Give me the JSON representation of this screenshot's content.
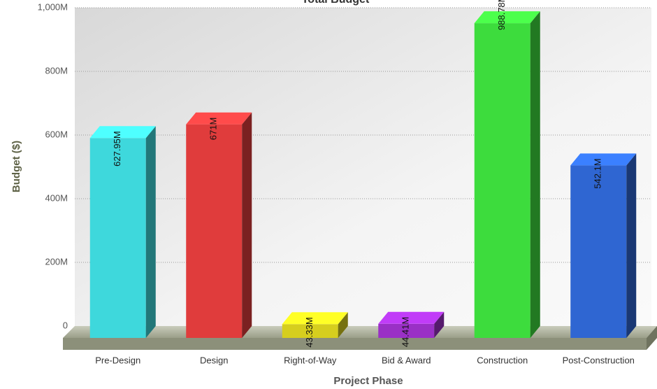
{
  "chart_data": {
    "type": "bar",
    "title": "Total Budget",
    "x_label": "Project Phase",
    "y_label": "Budget ($)",
    "categories": [
      "Pre-Design",
      "Design",
      "Right-of-Way",
      "Bid & Award",
      "Construction",
      "Post-Construction"
    ],
    "values": [
      627950000,
      671000000,
      43330000,
      44410000,
      988780000,
      542100000
    ],
    "value_labels": [
      "627.95M",
      "671M",
      "43.33M",
      "44.41M",
      "988.78M",
      "542.1M"
    ],
    "colors": [
      "#3ed8dc",
      "#e03c3c",
      "#d6ce1e",
      "#9a30c6",
      "#3ddc3d",
      "#2f66d2"
    ],
    "ylim": [
      0,
      1000000000
    ],
    "yticks": [
      {
        "value": 0,
        "label": "0"
      },
      {
        "value": 200000000,
        "label": "200M"
      },
      {
        "value": 400000000,
        "label": "400M"
      },
      {
        "value": 600000000,
        "label": "600M"
      },
      {
        "value": 800000000,
        "label": "800M"
      },
      {
        "value": 1000000000,
        "label": "1,000M"
      }
    ],
    "grid": true
  }
}
